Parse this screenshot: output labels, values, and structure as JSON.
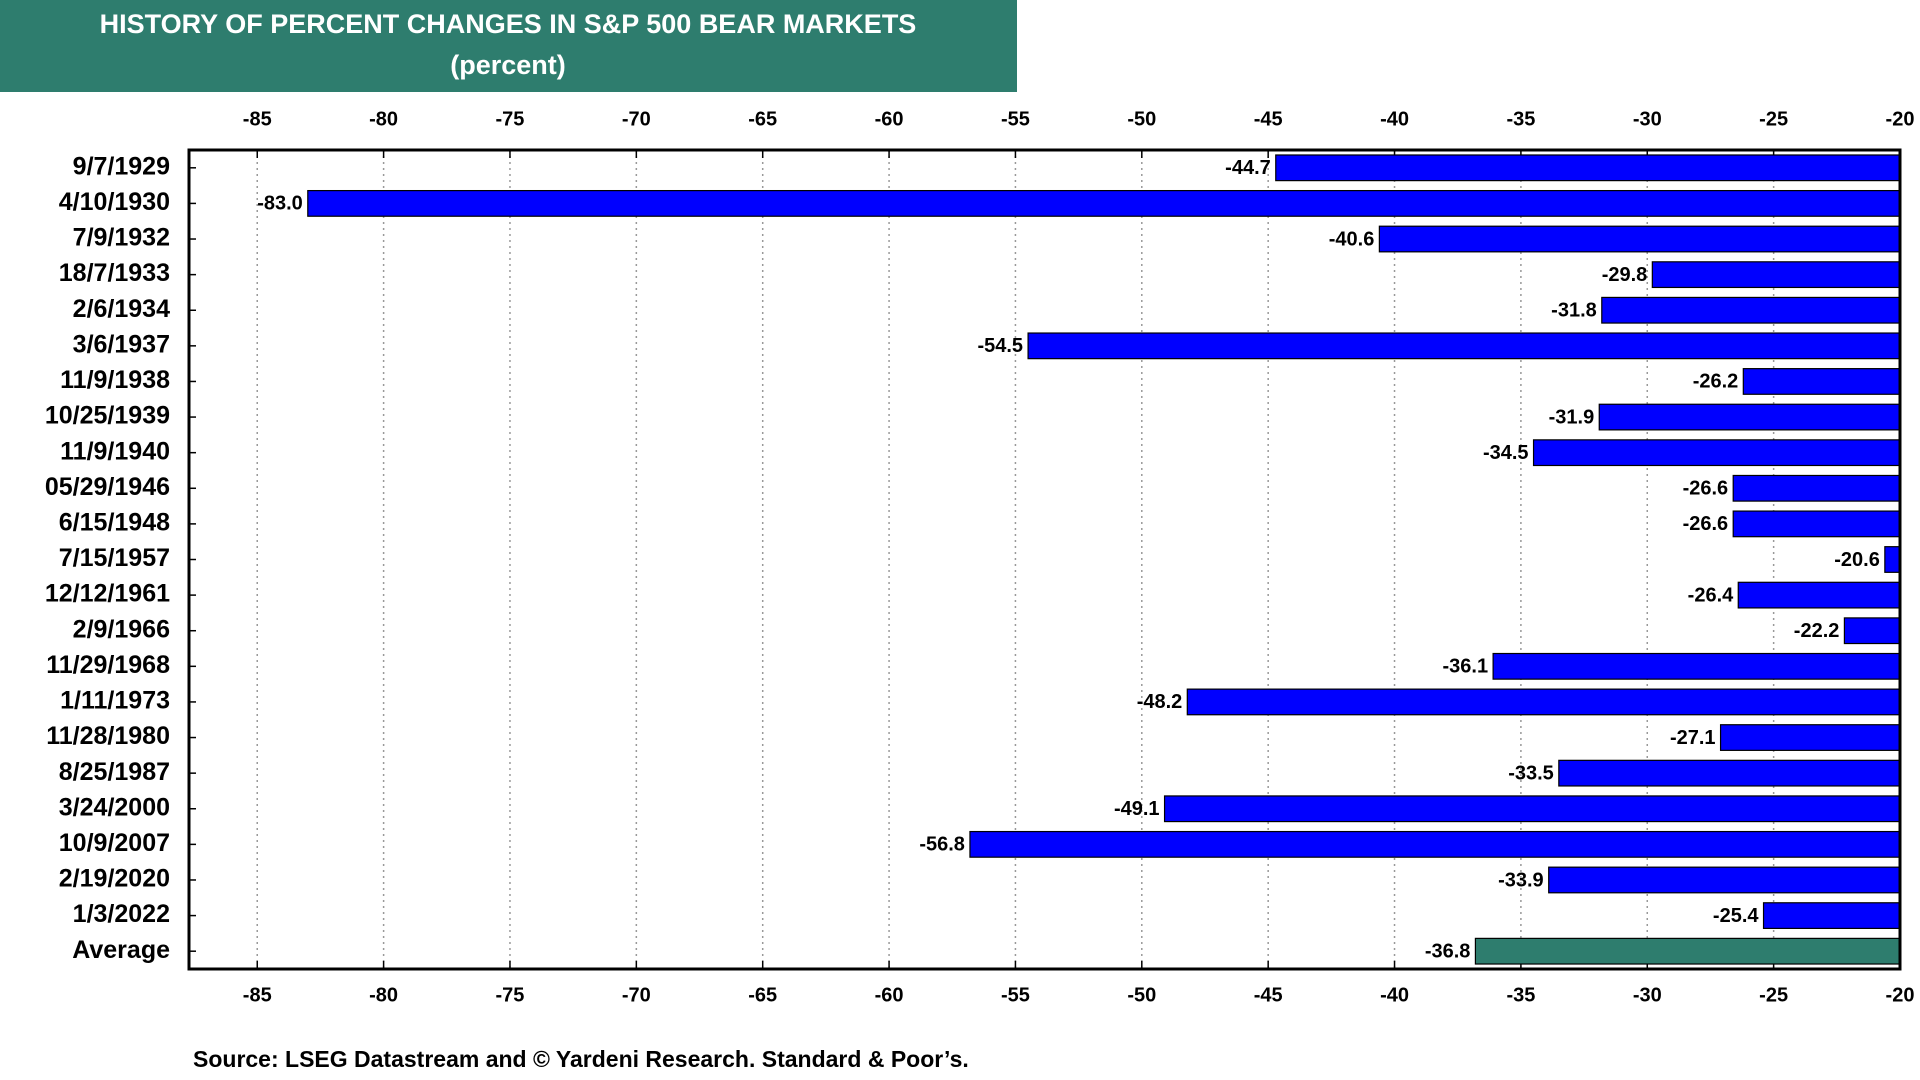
{
  "chart_data": {
    "type": "hbar",
    "title": "HISTORY OF PERCENT CHANGES IN S&P 500 BEAR MARKETS",
    "subtitle": "(percent)",
    "source": "Source: LSEG Datastream and © Yardeni Research. Standard & Poor’s.",
    "categories": [
      "9/7/1929",
      "4/10/1930",
      "7/9/1932",
      "18/7/1933",
      "2/6/1934",
      "3/6/1937",
      "11/9/1938",
      "10/25/1939",
      "11/9/1940",
      "05/29/1946",
      "6/15/1948",
      "7/15/1957",
      "12/12/1961",
      "2/9/1966",
      "11/29/1968",
      "1/11/1973",
      "11/28/1980",
      "8/25/1987",
      "3/24/2000",
      "10/9/2007",
      "2/19/2020",
      "1/3/2022",
      "Average"
    ],
    "values": [
      -44.7,
      -83.0,
      -40.6,
      -29.8,
      -31.8,
      -54.5,
      -26.2,
      -31.9,
      -34.5,
      -26.6,
      -26.6,
      -20.6,
      -26.4,
      -22.2,
      -36.1,
      -48.2,
      -27.1,
      -33.5,
      -49.1,
      -56.8,
      -33.9,
      -25.4,
      -36.8
    ],
    "value_labels": [
      "-44.7",
      "-83.0",
      "-40.6",
      "-29.8",
      "-31.8",
      "-54.5",
      "-26.2",
      "-31.9",
      "-34.5",
      "-26.6",
      "-26.6",
      "-20.6",
      "-26.4",
      "-22.2",
      "-36.1",
      "-48.2",
      "-27.1",
      "-33.5",
      "-49.1",
      "-56.8",
      "-33.9",
      "-25.4",
      "-36.8"
    ],
    "colors": [
      "#0000ff",
      "#0000ff",
      "#0000ff",
      "#0000ff",
      "#0000ff",
      "#0000ff",
      "#0000ff",
      "#0000ff",
      "#0000ff",
      "#0000ff",
      "#0000ff",
      "#0000ff",
      "#0000ff",
      "#0000ff",
      "#0000ff",
      "#0000ff",
      "#0000ff",
      "#0000ff",
      "#0000ff",
      "#0000ff",
      "#0000ff",
      "#0000ff",
      "#2e7d6e"
    ],
    "title_background": "#2e7d6e",
    "xlim": [
      -87.7,
      -20
    ],
    "xticks": [
      -85,
      -80,
      -75,
      -70,
      -65,
      -60,
      -55,
      -50,
      -45,
      -40,
      -35,
      -30,
      -25,
      -20
    ],
    "grid": true
  }
}
